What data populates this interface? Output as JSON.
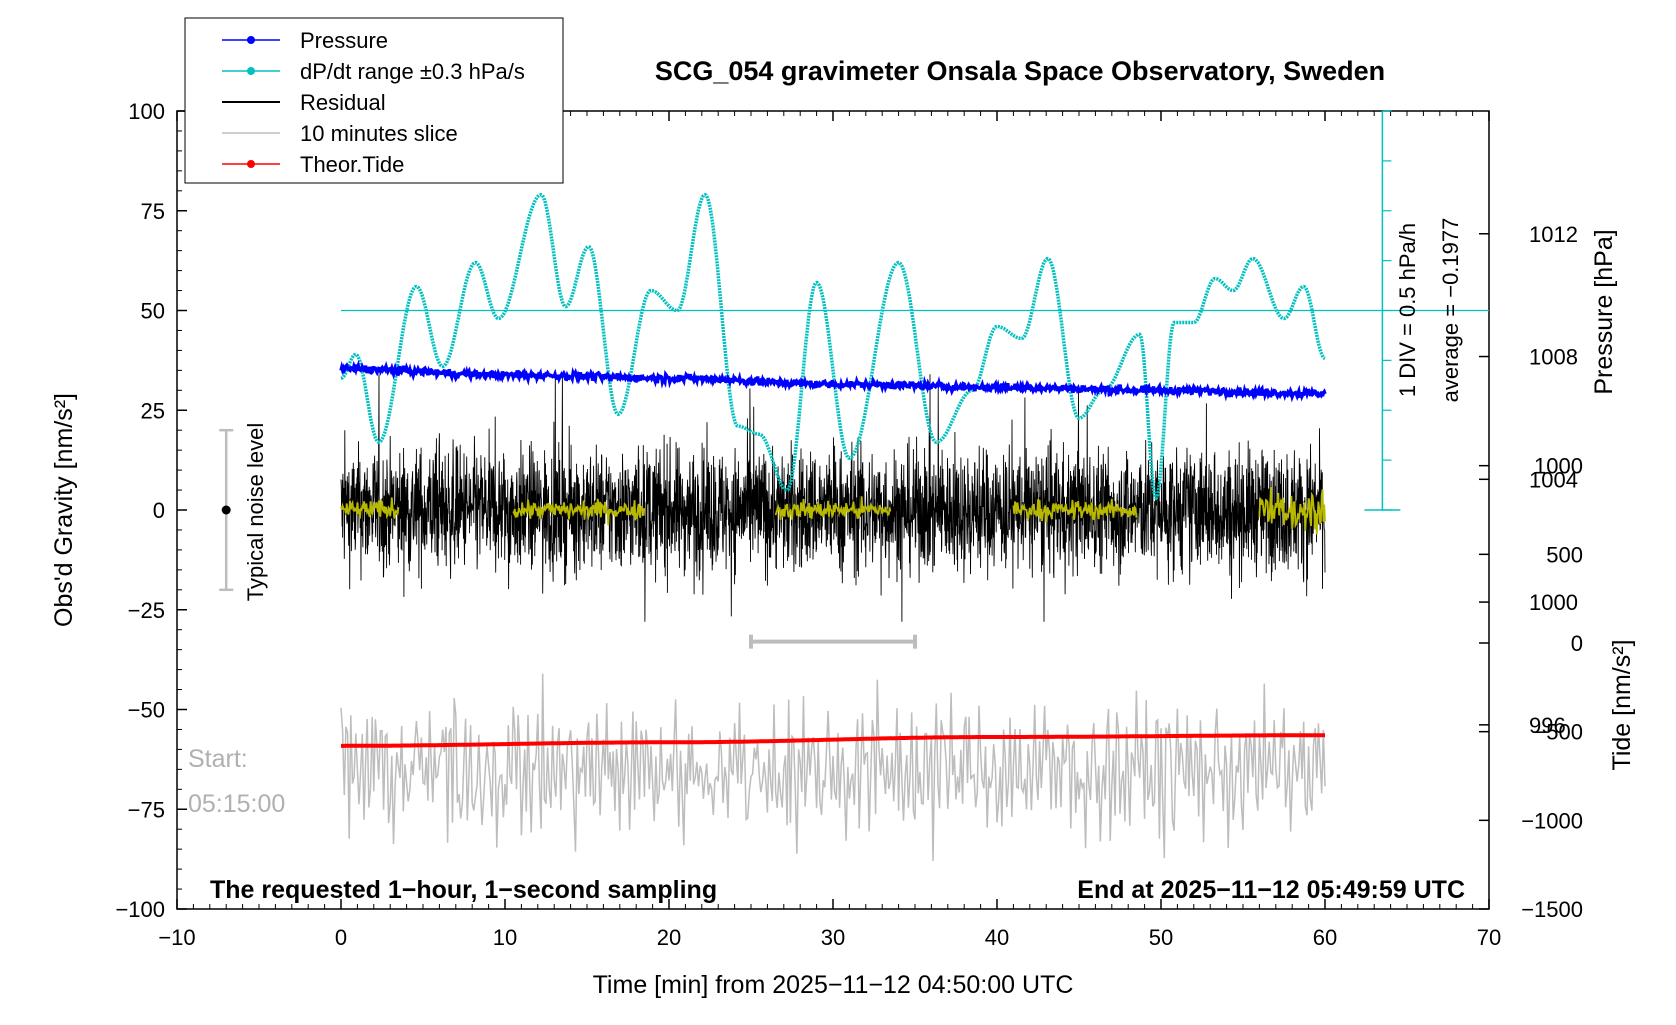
{
  "chart_data": {
    "type": "line",
    "title": "SCG_054 gravimeter Onsala Space Observatory, Sweden",
    "xlabel": "Time [min] from 2025−11−12 04:50:00 UTC",
    "ylabel": "Obs'd Gravity [nm/s²]",
    "y2label": "Pressure [hPa]",
    "y3label": "Tide [nm/s²]",
    "xlim": [
      -10,
      70
    ],
    "ylim": [
      -100,
      100
    ],
    "pressure_lim": [
      990,
      1016
    ],
    "tide_lim": [
      -1500,
      3000
    ],
    "x_ticks": [
      "−10",
      "0",
      "10",
      "20",
      "30",
      "40",
      "50",
      "60",
      "70"
    ],
    "y_ticks": [
      "−100",
      "−75",
      "−50",
      "−25",
      "0",
      "25",
      "50",
      "75",
      "100"
    ],
    "pressure_ticks": [
      "996",
      "1000",
      "1004",
      "1008",
      "1012"
    ],
    "tide_ticks": [
      "−1500",
      "−1000",
      "−500",
      "0",
      "500",
      "1000"
    ],
    "legend": {
      "position": "top-left",
      "entries": [
        {
          "label": "Pressure",
          "color": "#0000ff",
          "marker": true
        },
        {
          "label": "dP/dt range ±0.3 hPa/s",
          "color": "#00c0c0",
          "marker": true
        },
        {
          "label": "Residual",
          "color": "#000000",
          "marker": false
        },
        {
          "label": "10 minutes slice",
          "color": "#bdbdbd",
          "marker": false
        },
        {
          "label": "Theor.Tide",
          "color": "#ff0000",
          "marker": true
        }
      ]
    },
    "annotations": {
      "noise_label": "Typical noise level",
      "noise_range": [
        -20,
        20
      ],
      "noise_center_x": -7,
      "div_label": "1 DIV = 0.5 hPa/h",
      "average_label": "average = −0.1977",
      "dpdt_baseline_y": 50,
      "start_label": "Start:",
      "start_time": "05:15:00",
      "slice_range_min": [
        25,
        35
      ],
      "slice_bar_y": -33,
      "bottom_left": "The requested 1−hour, 1−second sampling",
      "bottom_right": "End at 2025−11−12 05:49:59 UTC"
    },
    "series": [
      {
        "name": "Pressure",
        "axis": "pressure",
        "color": "#0000ff",
        "x": [
          0,
          10,
          20,
          30,
          40,
          50,
          60
        ],
        "values": [
          1007.6,
          1007.4,
          1007.3,
          1007.1,
          1007.0,
          1006.9,
          1006.8
        ]
      },
      {
        "name": "dP/dt range ±0.3 hPa/s",
        "axis": "gravity",
        "color": "#00c0c0",
        "x": [
          0,
          0.9,
          2.3,
          4.6,
          6.2,
          8.2,
          9.6,
          12.2,
          13.7,
          15.1,
          16.9,
          18.9,
          20.5,
          22.2,
          24.2,
          25.5,
          27.2,
          29.0,
          31.0,
          34.0,
          36.3,
          38.5,
          40.0,
          41.5,
          43.1,
          45.0,
          46.5,
          48.7,
          49.7,
          50.8,
          52.0,
          53.3,
          54.4,
          55.6,
          57.5,
          58.7,
          60.0
        ],
        "values": [
          33,
          39,
          17,
          56,
          36,
          62,
          48,
          79,
          51,
          66,
          24,
          55,
          50,
          79,
          21,
          19,
          5,
          57,
          13,
          62,
          17,
          30,
          46,
          43,
          63,
          23,
          30,
          44,
          3,
          47,
          47,
          58,
          55,
          63,
          48,
          56,
          38
        ]
      },
      {
        "name": "Residual",
        "axis": "gravity",
        "color": "#000000",
        "x_range": [
          0,
          60
        ],
        "typical_range": [
          -24,
          29
        ]
      },
      {
        "name": "10 minutes slice",
        "axis": "gravity",
        "color": "#bdbdbd",
        "x_range": [
          0,
          60
        ],
        "typical_range": [
          -88,
          -41
        ],
        "center": -65
      },
      {
        "name": "Theor.Tide",
        "axis": "tide",
        "color": "#ff0000",
        "x": [
          0,
          20,
          40,
          60
        ],
        "values": [
          -580,
          -560,
          -530,
          -520
        ]
      },
      {
        "name": "Residual (smoothed)",
        "axis": "gravity",
        "color": "#b8b800",
        "segments": [
          [
            0,
            3.5
          ],
          [
            10.5,
            18.5
          ],
          [
            26.5,
            33.5
          ],
          [
            41,
            48.5
          ],
          [
            56,
            60
          ]
        ],
        "values_near": 0
      }
    ]
  }
}
